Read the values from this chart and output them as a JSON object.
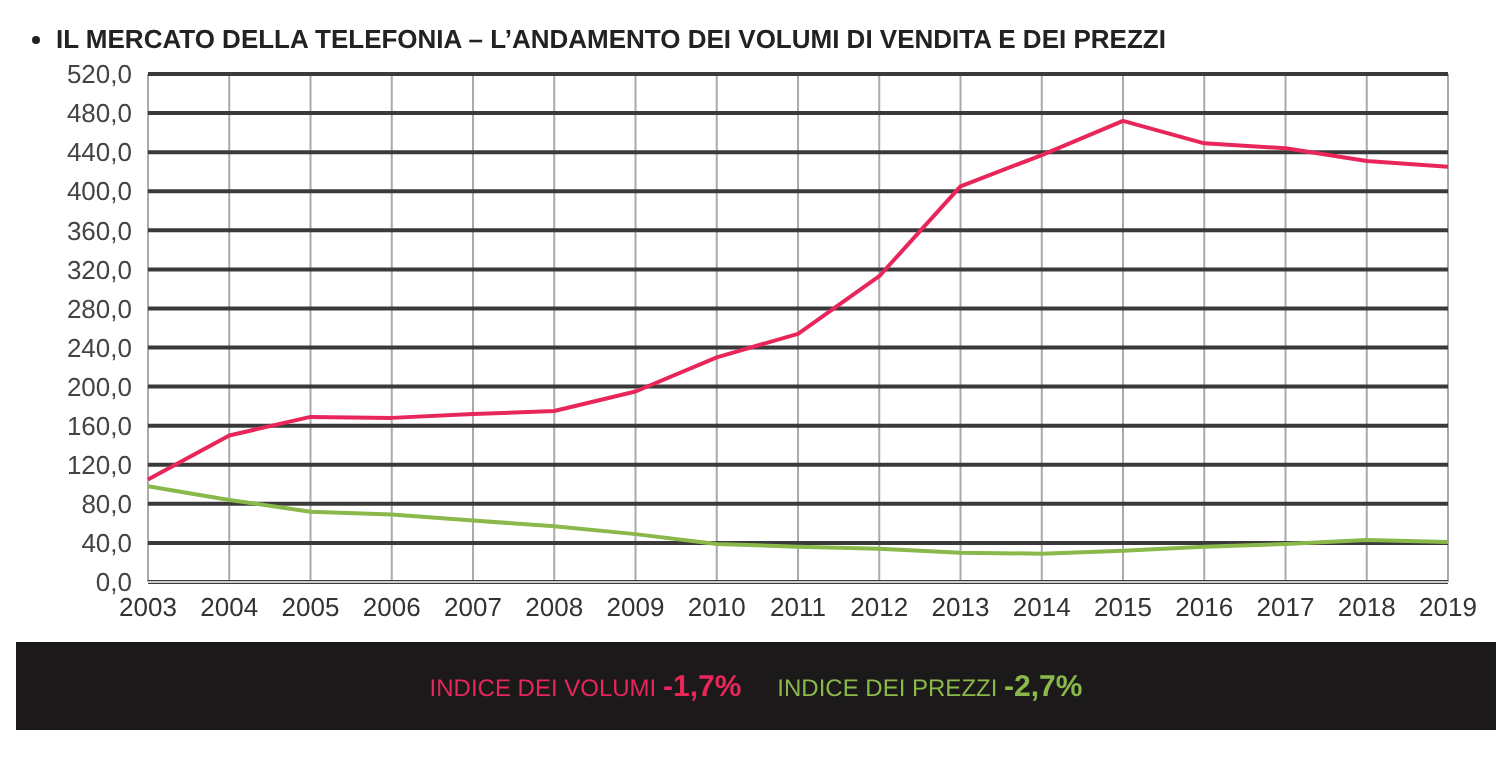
{
  "chart_data": {
    "type": "line",
    "title": "IL MERCATO DELLA TELEFONIA – L’ANDAMENTO DEI VOLUMI DI VENDITA E DEI PREZZI",
    "categories": [
      "2003",
      "2004",
      "2005",
      "2006",
      "2007",
      "2008",
      "2009",
      "2010",
      "2011",
      "2012",
      "2013",
      "2014",
      "2015",
      "2016",
      "2017",
      "2018",
      "2019"
    ],
    "series": [
      {
        "name": "INDICE DEI VOLUMI",
        "color": "#e8265a",
        "values": [
          105,
          150,
          169,
          168,
          172,
          175,
          195,
          230,
          254,
          313,
          405,
          437,
          472,
          449,
          444,
          431,
          425
        ]
      },
      {
        "name": "INDICE DEI PREZZI",
        "color": "#8ab84a",
        "values": [
          98,
          84,
          72,
          69,
          63,
          57,
          49,
          39,
          36,
          34,
          30,
          29,
          32,
          36,
          39,
          43,
          41
        ]
      }
    ],
    "ylim": [
      0,
      520
    ],
    "yticks": [
      {
        "value": 0,
        "label": "0,0"
      },
      {
        "value": 40,
        "label": "40,0"
      },
      {
        "value": 80,
        "label": "80,0"
      },
      {
        "value": 120,
        "label": "120,0"
      },
      {
        "value": 160,
        "label": "160,0"
      },
      {
        "value": 200,
        "label": "200,0"
      },
      {
        "value": 240,
        "label": "240,0"
      },
      {
        "value": 280,
        "label": "280,0"
      },
      {
        "value": 320,
        "label": "320,0"
      },
      {
        "value": 360,
        "label": "360,0"
      },
      {
        "value": 400,
        "label": "400,0"
      },
      {
        "value": 440,
        "label": "440,0"
      },
      {
        "value": 480,
        "label": "480,0"
      },
      {
        "value": 520,
        "label": "520,0"
      }
    ],
    "annotations": [
      "-1,7%",
      "-2,7%"
    ],
    "grid": true,
    "legend": "bottom",
    "marker": "none",
    "line_style": "solid"
  }
}
